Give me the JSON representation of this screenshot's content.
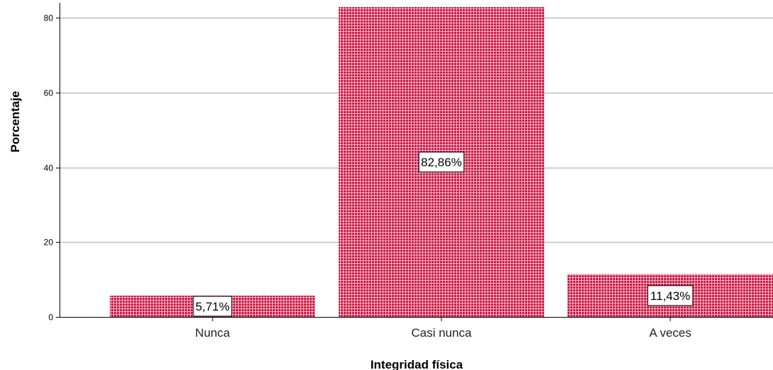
{
  "chart_data": {
    "type": "bar",
    "categories": [
      "Nunca",
      "Casi nunca",
      "A veces"
    ],
    "values": [
      5.71,
      82.86,
      11.43
    ],
    "data_labels": [
      "5,71%",
      "82,86%",
      "11,43%"
    ],
    "xlabel": "Integridad física",
    "ylabel": "Porcentaje",
    "ylim": [
      0,
      84
    ],
    "yticks": [
      0,
      20,
      40,
      60,
      80
    ],
    "grid": true,
    "bar_color": "#cc1845",
    "bar_pattern": "crosshatch-grid",
    "pattern_color": "#f4b8c6"
  }
}
